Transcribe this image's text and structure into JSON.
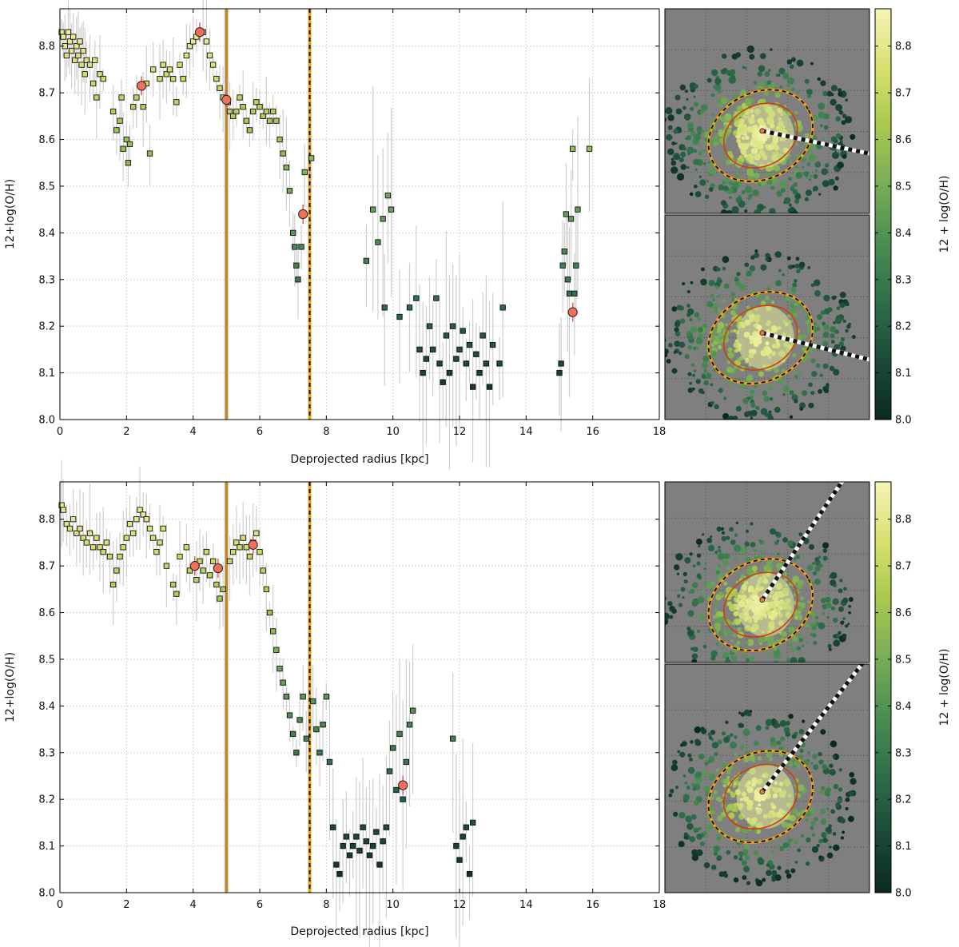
{
  "chart_data": [
    {
      "type": "scatter",
      "panel": "top",
      "xlabel": "Deprojected radius [kpc]",
      "ylabel": "12+log(O/H)",
      "xlim": [
        0,
        18
      ],
      "ylim": [
        8.0,
        8.88
      ],
      "xticks": [
        "0",
        "2",
        "4",
        "6",
        "8",
        "10",
        "12",
        "14",
        "16",
        "18"
      ],
      "yticks": [
        "8.0",
        "8.1",
        "8.2",
        "8.3",
        "8.4",
        "8.5",
        "8.6",
        "8.7",
        "8.8"
      ],
      "grid": true,
      "vlines": [
        {
          "x": 5.0,
          "style": "solid",
          "color": "#c8842a"
        },
        {
          "x": 7.5,
          "style": "dashed",
          "color": "#f0a020"
        }
      ],
      "spaxels": [
        [
          0.05,
          8.83
        ],
        [
          0.1,
          8.82
        ],
        [
          0.15,
          8.8
        ],
        [
          0.2,
          8.78
        ],
        [
          0.25,
          8.83
        ],
        [
          0.3,
          8.81
        ],
        [
          0.35,
          8.79
        ],
        [
          0.4,
          8.82
        ],
        [
          0.45,
          8.77
        ],
        [
          0.5,
          8.8
        ],
        [
          0.55,
          8.78
        ],
        [
          0.6,
          8.81
        ],
        [
          0.65,
          8.76
        ],
        [
          0.7,
          8.79
        ],
        [
          0.75,
          8.74
        ],
        [
          0.8,
          8.77
        ],
        [
          0.9,
          8.76
        ],
        [
          1.0,
          8.72
        ],
        [
          1.05,
          8.77
        ],
        [
          1.1,
          8.69
        ],
        [
          1.2,
          8.74
        ],
        [
          1.3,
          8.73
        ],
        [
          1.6,
          8.66
        ],
        [
          1.7,
          8.62
        ],
        [
          1.8,
          8.64
        ],
        [
          1.85,
          8.69
        ],
        [
          1.9,
          8.58
        ],
        [
          2.0,
          8.6
        ],
        [
          2.05,
          8.55
        ],
        [
          2.1,
          8.59
        ],
        [
          2.2,
          8.67
        ],
        [
          2.3,
          8.69
        ],
        [
          2.5,
          8.67
        ],
        [
          2.6,
          8.72
        ],
        [
          2.7,
          8.57
        ],
        [
          2.8,
          8.75
        ],
        [
          3.0,
          8.73
        ],
        [
          3.1,
          8.76
        ],
        [
          3.2,
          8.74
        ],
        [
          3.3,
          8.75
        ],
        [
          3.4,
          8.73
        ],
        [
          3.5,
          8.68
        ],
        [
          3.6,
          8.76
        ],
        [
          3.7,
          8.73
        ],
        [
          3.8,
          8.78
        ],
        [
          3.9,
          8.8
        ],
        [
          4.0,
          8.81
        ],
        [
          4.1,
          8.82
        ],
        [
          4.3,
          8.83
        ],
        [
          4.4,
          8.81
        ],
        [
          4.5,
          8.78
        ],
        [
          4.6,
          8.76
        ],
        [
          4.7,
          8.73
        ],
        [
          4.8,
          8.71
        ],
        [
          4.9,
          8.69
        ],
        [
          5.05,
          8.68
        ],
        [
          5.1,
          8.66
        ],
        [
          5.2,
          8.65
        ],
        [
          5.3,
          8.66
        ],
        [
          5.4,
          8.69
        ],
        [
          5.5,
          8.67
        ],
        [
          5.6,
          8.64
        ],
        [
          5.7,
          8.62
        ],
        [
          5.8,
          8.66
        ],
        [
          5.9,
          8.68
        ],
        [
          6.0,
          8.67
        ],
        [
          6.1,
          8.65
        ],
        [
          6.2,
          8.66
        ],
        [
          6.3,
          8.64
        ],
        [
          6.4,
          8.66
        ],
        [
          6.5,
          8.64
        ],
        [
          6.6,
          8.6
        ],
        [
          6.7,
          8.57
        ],
        [
          6.8,
          8.54
        ],
        [
          6.9,
          8.49
        ],
        [
          7.0,
          8.4
        ],
        [
          7.05,
          8.37
        ],
        [
          7.1,
          8.33
        ],
        [
          7.15,
          8.3
        ],
        [
          7.25,
          8.37
        ],
        [
          7.35,
          8.53
        ],
        [
          7.55,
          8.56
        ],
        [
          9.2,
          8.34
        ],
        [
          9.4,
          8.45
        ],
        [
          9.55,
          8.38
        ],
        [
          9.7,
          8.43
        ],
        [
          9.75,
          8.24
        ],
        [
          9.85,
          8.48
        ],
        [
          9.95,
          8.45
        ],
        [
          10.2,
          8.22
        ],
        [
          10.5,
          8.24
        ],
        [
          10.7,
          8.26
        ],
        [
          10.8,
          8.15
        ],
        [
          10.9,
          8.1
        ],
        [
          11.0,
          8.13
        ],
        [
          11.1,
          8.2
        ],
        [
          11.2,
          8.15
        ],
        [
          11.3,
          8.26
        ],
        [
          11.4,
          8.12
        ],
        [
          11.5,
          8.08
        ],
        [
          11.6,
          8.18
        ],
        [
          11.7,
          8.1
        ],
        [
          11.8,
          8.2
        ],
        [
          11.9,
          8.13
        ],
        [
          12.0,
          8.15
        ],
        [
          12.1,
          8.19
        ],
        [
          12.2,
          8.12
        ],
        [
          12.3,
          8.16
        ],
        [
          12.4,
          8.07
        ],
        [
          12.5,
          8.14
        ],
        [
          12.6,
          8.1
        ],
        [
          12.7,
          8.18
        ],
        [
          12.8,
          8.12
        ],
        [
          12.9,
          8.07
        ],
        [
          13.0,
          8.16
        ],
        [
          13.2,
          8.12
        ],
        [
          13.3,
          8.24
        ],
        [
          15.0,
          8.1
        ],
        [
          15.05,
          8.12
        ],
        [
          15.1,
          8.33
        ],
        [
          15.15,
          8.36
        ],
        [
          15.2,
          8.44
        ],
        [
          15.25,
          8.3
        ],
        [
          15.3,
          8.27
        ],
        [
          15.35,
          8.43
        ],
        [
          15.4,
          8.58
        ],
        [
          15.45,
          8.27
        ],
        [
          15.5,
          8.33
        ],
        [
          15.55,
          8.45
        ],
        [
          15.9,
          8.58
        ]
      ],
      "binned_means": [
        [
          2.45,
          8.715
        ],
        [
          4.2,
          8.83
        ],
        [
          5.0,
          8.685
        ],
        [
          7.3,
          8.44
        ],
        [
          15.4,
          8.23
        ]
      ]
    },
    {
      "type": "scatter",
      "panel": "bottom",
      "xlabel": "Deprojected radius [kpc]",
      "ylabel": "12+log(O/H)",
      "xlim": [
        0,
        18
      ],
      "ylim": [
        8.0,
        8.88
      ],
      "xticks": [
        "0",
        "2",
        "4",
        "6",
        "8",
        "10",
        "12",
        "14",
        "16",
        "18"
      ],
      "yticks": [
        "8.0",
        "8.1",
        "8.2",
        "8.3",
        "8.4",
        "8.5",
        "8.6",
        "8.7",
        "8.8"
      ],
      "grid": true,
      "vlines": [
        {
          "x": 5.0,
          "style": "solid",
          "color": "#c8842a"
        },
        {
          "x": 7.5,
          "style": "dashed",
          "color": "#f0a020"
        }
      ],
      "spaxels": [
        [
          0.05,
          8.83
        ],
        [
          0.1,
          8.82
        ],
        [
          0.2,
          8.79
        ],
        [
          0.3,
          8.78
        ],
        [
          0.4,
          8.8
        ],
        [
          0.5,
          8.77
        ],
        [
          0.6,
          8.78
        ],
        [
          0.7,
          8.76
        ],
        [
          0.8,
          8.75
        ],
        [
          0.9,
          8.77
        ],
        [
          1.0,
          8.74
        ],
        [
          1.1,
          8.76
        ],
        [
          1.2,
          8.74
        ],
        [
          1.3,
          8.73
        ],
        [
          1.4,
          8.75
        ],
        [
          1.5,
          8.72
        ],
        [
          1.6,
          8.66
        ],
        [
          1.7,
          8.69
        ],
        [
          1.8,
          8.72
        ],
        [
          1.9,
          8.74
        ],
        [
          2.0,
          8.76
        ],
        [
          2.1,
          8.79
        ],
        [
          2.2,
          8.77
        ],
        [
          2.3,
          8.8
        ],
        [
          2.4,
          8.82
        ],
        [
          2.5,
          8.81
        ],
        [
          2.6,
          8.8
        ],
        [
          2.7,
          8.78
        ],
        [
          2.8,
          8.76
        ],
        [
          2.9,
          8.73
        ],
        [
          3.0,
          8.75
        ],
        [
          3.1,
          8.78
        ],
        [
          3.2,
          8.7
        ],
        [
          3.4,
          8.66
        ],
        [
          3.5,
          8.64
        ],
        [
          3.6,
          8.72
        ],
        [
          3.8,
          8.74
        ],
        [
          3.9,
          8.69
        ],
        [
          4.1,
          8.67
        ],
        [
          4.2,
          8.71
        ],
        [
          4.3,
          8.69
        ],
        [
          4.4,
          8.73
        ],
        [
          4.5,
          8.68
        ],
        [
          4.6,
          8.71
        ],
        [
          4.7,
          8.66
        ],
        [
          4.8,
          8.63
        ],
        [
          4.9,
          8.65
        ],
        [
          5.1,
          8.71
        ],
        [
          5.2,
          8.73
        ],
        [
          5.3,
          8.75
        ],
        [
          5.4,
          8.74
        ],
        [
          5.5,
          8.76
        ],
        [
          5.6,
          8.74
        ],
        [
          5.7,
          8.72
        ],
        [
          5.8,
          8.75
        ],
        [
          5.9,
          8.77
        ],
        [
          6.0,
          8.73
        ],
        [
          6.1,
          8.69
        ],
        [
          6.2,
          8.65
        ],
        [
          6.3,
          8.6
        ],
        [
          6.4,
          8.56
        ],
        [
          6.5,
          8.52
        ],
        [
          6.6,
          8.48
        ],
        [
          6.7,
          8.45
        ],
        [
          6.8,
          8.42
        ],
        [
          6.9,
          8.38
        ],
        [
          7.0,
          8.34
        ],
        [
          7.1,
          8.3
        ],
        [
          7.2,
          8.37
        ],
        [
          7.3,
          8.42
        ],
        [
          7.4,
          8.33
        ],
        [
          7.6,
          8.41
        ],
        [
          7.7,
          8.35
        ],
        [
          7.8,
          8.3
        ],
        [
          7.9,
          8.36
        ],
        [
          8.0,
          8.42
        ],
        [
          8.1,
          8.28
        ],
        [
          8.2,
          8.14
        ],
        [
          8.3,
          8.06
        ],
        [
          8.4,
          8.04
        ],
        [
          8.5,
          8.1
        ],
        [
          8.6,
          8.12
        ],
        [
          8.7,
          8.08
        ],
        [
          8.8,
          8.1
        ],
        [
          8.9,
          8.12
        ],
        [
          9.0,
          8.09
        ],
        [
          9.1,
          8.14
        ],
        [
          9.2,
          8.11
        ],
        [
          9.3,
          8.08
        ],
        [
          9.4,
          8.1
        ],
        [
          9.5,
          8.13
        ],
        [
          9.6,
          8.06
        ],
        [
          9.7,
          8.11
        ],
        [
          9.8,
          8.14
        ],
        [
          9.9,
          8.26
        ],
        [
          10.0,
          8.31
        ],
        [
          10.1,
          8.22
        ],
        [
          10.2,
          8.34
        ],
        [
          10.3,
          8.2
        ],
        [
          10.4,
          8.28
        ],
        [
          10.5,
          8.36
        ],
        [
          10.6,
          8.39
        ],
        [
          11.8,
          8.33
        ],
        [
          11.9,
          8.1
        ],
        [
          12.0,
          8.07
        ],
        [
          12.1,
          8.12
        ],
        [
          12.2,
          8.14
        ],
        [
          12.3,
          8.04
        ],
        [
          12.4,
          8.15
        ]
      ],
      "binned_means": [
        [
          4.05,
          8.7
        ],
        [
          4.75,
          8.695
        ],
        [
          5.8,
          8.745
        ],
        [
          10.3,
          8.23
        ]
      ]
    }
  ],
  "colorbar": {
    "label": "12 + log(O/H)",
    "ticks": [
      "8.0",
      "8.1",
      "8.2",
      "8.3",
      "8.4",
      "8.5",
      "8.6",
      "8.7",
      "8.8"
    ],
    "range": [
      8.0,
      8.88
    ],
    "colors": [
      "#0b2a22",
      "#1c4a38",
      "#2e6e4a",
      "#4a8e52",
      "#78ad58",
      "#a8c850",
      "#d8e070",
      "#f6f3b8"
    ]
  },
  "maps": [
    {
      "name": "top-map-upper",
      "slit_angle_deg": -12
    },
    {
      "name": "top-map-lower",
      "slit_angle_deg": -14
    },
    {
      "name": "bottom-map-upper",
      "slit_angle_deg": 56
    },
    {
      "name": "bottom-map-lower",
      "slit_angle_deg": 52
    }
  ]
}
